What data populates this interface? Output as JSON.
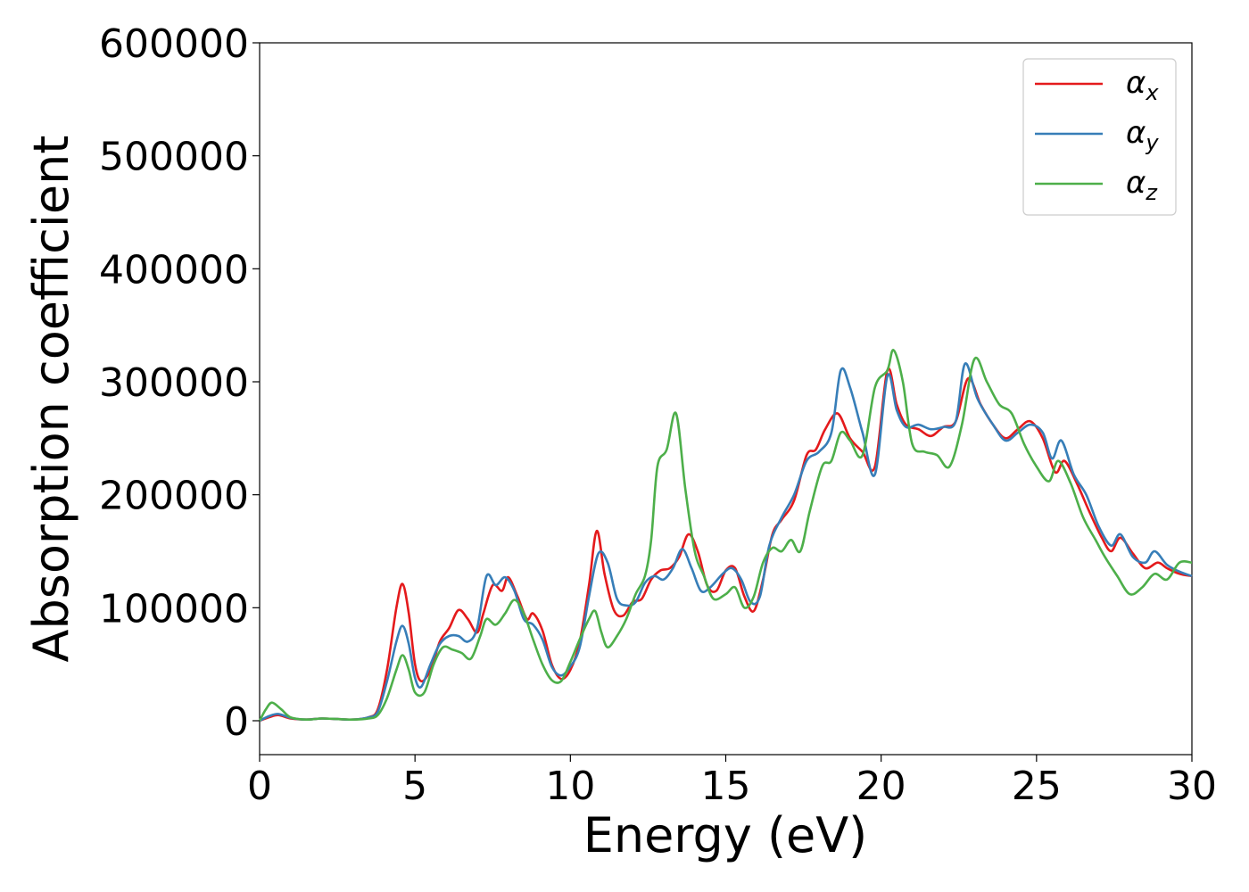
{
  "chart_data": {
    "type": "line",
    "title": "",
    "xlabel": "Energy (eV)",
    "ylabel": "Absorption coefficient",
    "xlim": [
      0,
      30
    ],
    "ylim": [
      -30000,
      600000
    ],
    "xticks": [
      "0",
      "5",
      "10",
      "15",
      "20",
      "25",
      "30"
    ],
    "yticks": [
      "0",
      "100000",
      "200000",
      "300000",
      "400000",
      "500000",
      "600000"
    ],
    "grid": false,
    "legend_position": "top-right",
    "series": [
      {
        "name": "αx",
        "symbol": "α",
        "subscript": "x",
        "color": "#e41a1c",
        "points": [
          [
            0,
            0
          ],
          [
            0.3,
            3000
          ],
          [
            0.6,
            5000
          ],
          [
            1,
            2000
          ],
          [
            1.5,
            1000
          ],
          [
            2,
            2000
          ],
          [
            2.5,
            1500
          ],
          [
            3,
            1000
          ],
          [
            3.5,
            3000
          ],
          [
            3.8,
            10000
          ],
          [
            4.1,
            45000
          ],
          [
            4.4,
            100000
          ],
          [
            4.6,
            121000
          ],
          [
            4.8,
            95000
          ],
          [
            5,
            50000
          ],
          [
            5.2,
            35000
          ],
          [
            5.5,
            45000
          ],
          [
            5.8,
            70000
          ],
          [
            6.1,
            82000
          ],
          [
            6.4,
            98000
          ],
          [
            6.7,
            90000
          ],
          [
            7,
            78000
          ],
          [
            7.2,
            95000
          ],
          [
            7.5,
            120000
          ],
          [
            7.8,
            115000
          ],
          [
            8,
            127000
          ],
          [
            8.3,
            110000
          ],
          [
            8.6,
            90000
          ],
          [
            8.8,
            95000
          ],
          [
            9.1,
            80000
          ],
          [
            9.4,
            50000
          ],
          [
            9.7,
            37000
          ],
          [
            10,
            45000
          ],
          [
            10.3,
            70000
          ],
          [
            10.6,
            120000
          ],
          [
            10.85,
            168000
          ],
          [
            11.1,
            130000
          ],
          [
            11.4,
            98000
          ],
          [
            11.7,
            93000
          ],
          [
            12,
            105000
          ],
          [
            12.3,
            108000
          ],
          [
            12.6,
            125000
          ],
          [
            12.9,
            133000
          ],
          [
            13.2,
            135000
          ],
          [
            13.5,
            145000
          ],
          [
            13.8,
            165000
          ],
          [
            14.1,
            150000
          ],
          [
            14.4,
            120000
          ],
          [
            14.7,
            115000
          ],
          [
            15,
            133000
          ],
          [
            15.3,
            135000
          ],
          [
            15.6,
            110000
          ],
          [
            15.9,
            97000
          ],
          [
            16.2,
            125000
          ],
          [
            16.5,
            165000
          ],
          [
            16.8,
            178000
          ],
          [
            17.2,
            195000
          ],
          [
            17.6,
            235000
          ],
          [
            17.9,
            240000
          ],
          [
            18.2,
            258000
          ],
          [
            18.6,
            272000
          ],
          [
            19,
            250000
          ],
          [
            19.4,
            238000
          ],
          [
            19.8,
            225000
          ],
          [
            20.2,
            310000
          ],
          [
            20.5,
            280000
          ],
          [
            20.8,
            262000
          ],
          [
            21.2,
            258000
          ],
          [
            21.6,
            252000
          ],
          [
            22,
            260000
          ],
          [
            22.4,
            265000
          ],
          [
            22.8,
            303000
          ],
          [
            23.2,
            280000
          ],
          [
            23.6,
            262000
          ],
          [
            24,
            250000
          ],
          [
            24.4,
            258000
          ],
          [
            24.8,
            265000
          ],
          [
            25.2,
            250000
          ],
          [
            25.6,
            220000
          ],
          [
            25.9,
            230000
          ],
          [
            26.3,
            210000
          ],
          [
            26.7,
            185000
          ],
          [
            27.1,
            162000
          ],
          [
            27.4,
            150000
          ],
          [
            27.7,
            162000
          ],
          [
            28.1,
            148000
          ],
          [
            28.5,
            135000
          ],
          [
            28.9,
            140000
          ],
          [
            29.2,
            135000
          ],
          [
            29.6,
            130000
          ],
          [
            30,
            128000
          ]
        ]
      },
      {
        "name": "αy",
        "symbol": "α",
        "subscript": "y",
        "color": "#377eb8",
        "points": [
          [
            0,
            0
          ],
          [
            0.3,
            4000
          ],
          [
            0.6,
            6000
          ],
          [
            1,
            2500
          ],
          [
            1.5,
            1000
          ],
          [
            2,
            2000
          ],
          [
            2.5,
            1500
          ],
          [
            3,
            1000
          ],
          [
            3.5,
            3000
          ],
          [
            3.8,
            8000
          ],
          [
            4.1,
            35000
          ],
          [
            4.4,
            70000
          ],
          [
            4.6,
            84000
          ],
          [
            4.8,
            68000
          ],
          [
            5,
            38000
          ],
          [
            5.2,
            30000
          ],
          [
            5.5,
            50000
          ],
          [
            5.8,
            68000
          ],
          [
            6.1,
            75000
          ],
          [
            6.4,
            75000
          ],
          [
            6.7,
            70000
          ],
          [
            7,
            82000
          ],
          [
            7.3,
            128000
          ],
          [
            7.6,
            120000
          ],
          [
            7.9,
            127000
          ],
          [
            8.2,
            115000
          ],
          [
            8.5,
            90000
          ],
          [
            8.8,
            85000
          ],
          [
            9.1,
            72000
          ],
          [
            9.4,
            48000
          ],
          [
            9.7,
            40000
          ],
          [
            10,
            48000
          ],
          [
            10.3,
            65000
          ],
          [
            10.6,
            110000
          ],
          [
            10.9,
            148000
          ],
          [
            11.2,
            140000
          ],
          [
            11.5,
            108000
          ],
          [
            11.8,
            102000
          ],
          [
            12.1,
            105000
          ],
          [
            12.4,
            122000
          ],
          [
            12.7,
            128000
          ],
          [
            13,
            125000
          ],
          [
            13.3,
            135000
          ],
          [
            13.6,
            152000
          ],
          [
            13.9,
            135000
          ],
          [
            14.2,
            115000
          ],
          [
            14.5,
            118000
          ],
          [
            14.9,
            130000
          ],
          [
            15.2,
            135000
          ],
          [
            15.5,
            125000
          ],
          [
            15.8,
            105000
          ],
          [
            16.1,
            110000
          ],
          [
            16.4,
            155000
          ],
          [
            16.8,
            180000
          ],
          [
            17.2,
            200000
          ],
          [
            17.6,
            230000
          ],
          [
            18,
            238000
          ],
          [
            18.4,
            255000
          ],
          [
            18.7,
            310000
          ],
          [
            19,
            295000
          ],
          [
            19.4,
            255000
          ],
          [
            19.8,
            218000
          ],
          [
            20.2,
            305000
          ],
          [
            20.5,
            275000
          ],
          [
            20.8,
            260000
          ],
          [
            21.2,
            262000
          ],
          [
            21.6,
            258000
          ],
          [
            22,
            260000
          ],
          [
            22.4,
            265000
          ],
          [
            22.7,
            316000
          ],
          [
            23.1,
            285000
          ],
          [
            23.6,
            262000
          ],
          [
            24,
            248000
          ],
          [
            24.4,
            255000
          ],
          [
            24.8,
            262000
          ],
          [
            25.2,
            255000
          ],
          [
            25.5,
            232000
          ],
          [
            25.8,
            248000
          ],
          [
            26.2,
            218000
          ],
          [
            26.6,
            200000
          ],
          [
            27,
            172000
          ],
          [
            27.4,
            155000
          ],
          [
            27.7,
            165000
          ],
          [
            28.1,
            145000
          ],
          [
            28.5,
            140000
          ],
          [
            28.8,
            150000
          ],
          [
            29.2,
            138000
          ],
          [
            29.6,
            132000
          ],
          [
            30,
            128000
          ]
        ]
      },
      {
        "name": "αz",
        "symbol": "α",
        "subscript": "z",
        "color": "#4daf4a",
        "points": [
          [
            0,
            0
          ],
          [
            0.2,
            10000
          ],
          [
            0.4,
            16000
          ],
          [
            0.7,
            10000
          ],
          [
            1,
            3000
          ],
          [
            1.5,
            1000
          ],
          [
            2,
            2000
          ],
          [
            2.5,
            1500
          ],
          [
            3,
            1000
          ],
          [
            3.5,
            2000
          ],
          [
            3.8,
            5000
          ],
          [
            4.1,
            20000
          ],
          [
            4.4,
            45000
          ],
          [
            4.6,
            58000
          ],
          [
            4.8,
            45000
          ],
          [
            5,
            25000
          ],
          [
            5.3,
            25000
          ],
          [
            5.6,
            50000
          ],
          [
            5.9,
            65000
          ],
          [
            6.2,
            63000
          ],
          [
            6.5,
            60000
          ],
          [
            6.8,
            55000
          ],
          [
            7.1,
            75000
          ],
          [
            7.3,
            90000
          ],
          [
            7.6,
            85000
          ],
          [
            7.9,
            95000
          ],
          [
            8.2,
            107000
          ],
          [
            8.5,
            95000
          ],
          [
            8.8,
            72000
          ],
          [
            9.1,
            50000
          ],
          [
            9.4,
            36000
          ],
          [
            9.7,
            35000
          ],
          [
            10,
            52000
          ],
          [
            10.3,
            72000
          ],
          [
            10.6,
            90000
          ],
          [
            10.8,
            97000
          ],
          [
            11,
            78000
          ],
          [
            11.2,
            65000
          ],
          [
            11.5,
            75000
          ],
          [
            11.8,
            90000
          ],
          [
            12.1,
            112000
          ],
          [
            12.4,
            128000
          ],
          [
            12.6,
            160000
          ],
          [
            12.8,
            225000
          ],
          [
            13.1,
            240000
          ],
          [
            13.4,
            272000
          ],
          [
            13.7,
            205000
          ],
          [
            14,
            150000
          ],
          [
            14.3,
            128000
          ],
          [
            14.6,
            108000
          ],
          [
            15,
            112000
          ],
          [
            15.3,
            118000
          ],
          [
            15.6,
            100000
          ],
          [
            15.9,
            110000
          ],
          [
            16.2,
            140000
          ],
          [
            16.5,
            153000
          ],
          [
            16.8,
            150000
          ],
          [
            17.1,
            160000
          ],
          [
            17.4,
            150000
          ],
          [
            17.7,
            185000
          ],
          [
            18.1,
            225000
          ],
          [
            18.4,
            230000
          ],
          [
            18.7,
            255000
          ],
          [
            19,
            248000
          ],
          [
            19.4,
            235000
          ],
          [
            19.8,
            295000
          ],
          [
            20.2,
            310000
          ],
          [
            20.4,
            328000
          ],
          [
            20.7,
            300000
          ],
          [
            21,
            245000
          ],
          [
            21.4,
            238000
          ],
          [
            21.8,
            235000
          ],
          [
            22.2,
            225000
          ],
          [
            22.6,
            262000
          ],
          [
            23,
            320000
          ],
          [
            23.4,
            300000
          ],
          [
            23.8,
            280000
          ],
          [
            24.2,
            272000
          ],
          [
            24.6,
            245000
          ],
          [
            25,
            225000
          ],
          [
            25.4,
            212000
          ],
          [
            25.7,
            230000
          ],
          [
            26.1,
            210000
          ],
          [
            26.5,
            180000
          ],
          [
            26.9,
            160000
          ],
          [
            27.2,
            145000
          ],
          [
            27.6,
            128000
          ],
          [
            28,
            112000
          ],
          [
            28.4,
            118000
          ],
          [
            28.8,
            130000
          ],
          [
            29.2,
            125000
          ],
          [
            29.6,
            140000
          ],
          [
            30,
            140000
          ]
        ]
      }
    ]
  }
}
